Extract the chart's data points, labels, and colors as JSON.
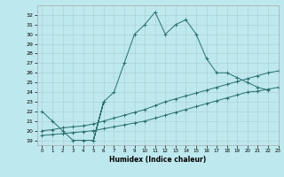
{
  "bg_color": "#bde8ee",
  "grid_color": "#aacccc",
  "line_color": "#2a6e6e",
  "xlabel": "Humidex (Indice chaleur)",
  "xlim": [
    -0.5,
    23
  ],
  "ylim": [
    18.5,
    33
  ],
  "xticks": [
    0,
    1,
    2,
    3,
    4,
    5,
    6,
    7,
    8,
    9,
    10,
    11,
    12,
    13,
    14,
    15,
    16,
    17,
    18,
    19,
    20,
    21,
    22,
    23
  ],
  "yticks": [
    19,
    20,
    21,
    22,
    23,
    24,
    25,
    26,
    27,
    28,
    29,
    30,
    31,
    32
  ],
  "line1_x": [
    0,
    1,
    2,
    3,
    4,
    5,
    6,
    5,
    6,
    7,
    8,
    9,
    10,
    11,
    12,
    13,
    14,
    15,
    16,
    17,
    18,
    19,
    20,
    21,
    22
  ],
  "line1_y": [
    22,
    21,
    20,
    19,
    19,
    19,
    23,
    19,
    23,
    24,
    27,
    30,
    31,
    32.3,
    30,
    31,
    31.5,
    30,
    27.5,
    26,
    26,
    25.5,
    25,
    24.5,
    24.2
  ],
  "line2_x": [
    0,
    1,
    2,
    3,
    4,
    5,
    6,
    7,
    8,
    9,
    10,
    11,
    12,
    13,
    14,
    15,
    16,
    17,
    18,
    19,
    20,
    21,
    22,
    23
  ],
  "line2_y": [
    20.0,
    20.1,
    20.3,
    20.4,
    20.5,
    20.7,
    21.0,
    21.3,
    21.6,
    21.9,
    22.2,
    22.6,
    23.0,
    23.3,
    23.6,
    23.9,
    24.2,
    24.5,
    24.8,
    25.1,
    25.4,
    25.7,
    26.0,
    26.2
  ],
  "line3_x": [
    0,
    1,
    2,
    3,
    4,
    5,
    6,
    7,
    8,
    9,
    10,
    11,
    12,
    13,
    14,
    15,
    16,
    17,
    18,
    19,
    20,
    21,
    22,
    23
  ],
  "line3_y": [
    19.5,
    19.6,
    19.7,
    19.8,
    19.9,
    20.0,
    20.2,
    20.4,
    20.6,
    20.8,
    21.0,
    21.3,
    21.6,
    21.9,
    22.2,
    22.5,
    22.8,
    23.1,
    23.4,
    23.7,
    24.0,
    24.1,
    24.3,
    24.5
  ]
}
